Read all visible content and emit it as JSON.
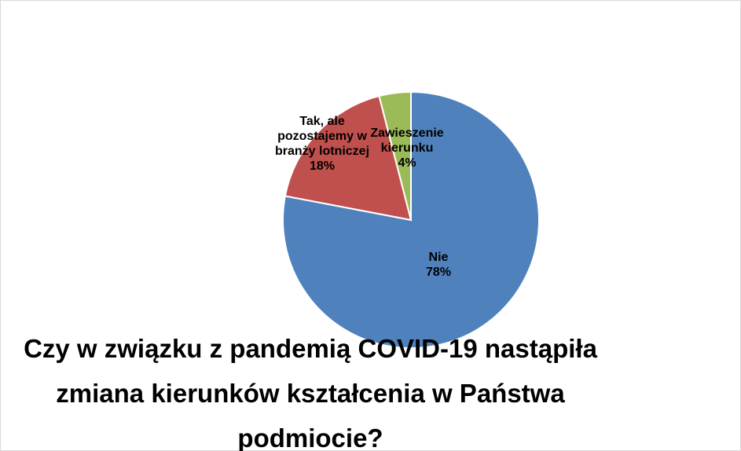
{
  "chart_data": {
    "type": "pie",
    "title": "Czy w związku z pandemią COVID-19 nastąpiła zmiana kierunków kształcenia w Państwa podmiocie?",
    "categories": [
      "Nie",
      "Tak, ale pozostajemy w branży lotniczej",
      "Zawieszenie kierunku"
    ],
    "values": [
      78,
      18,
      4
    ],
    "value_labels": [
      "78%",
      "18%",
      "4%"
    ],
    "colors": [
      "#4f81bd",
      "#c0504d",
      "#9bbb59"
    ]
  }
}
